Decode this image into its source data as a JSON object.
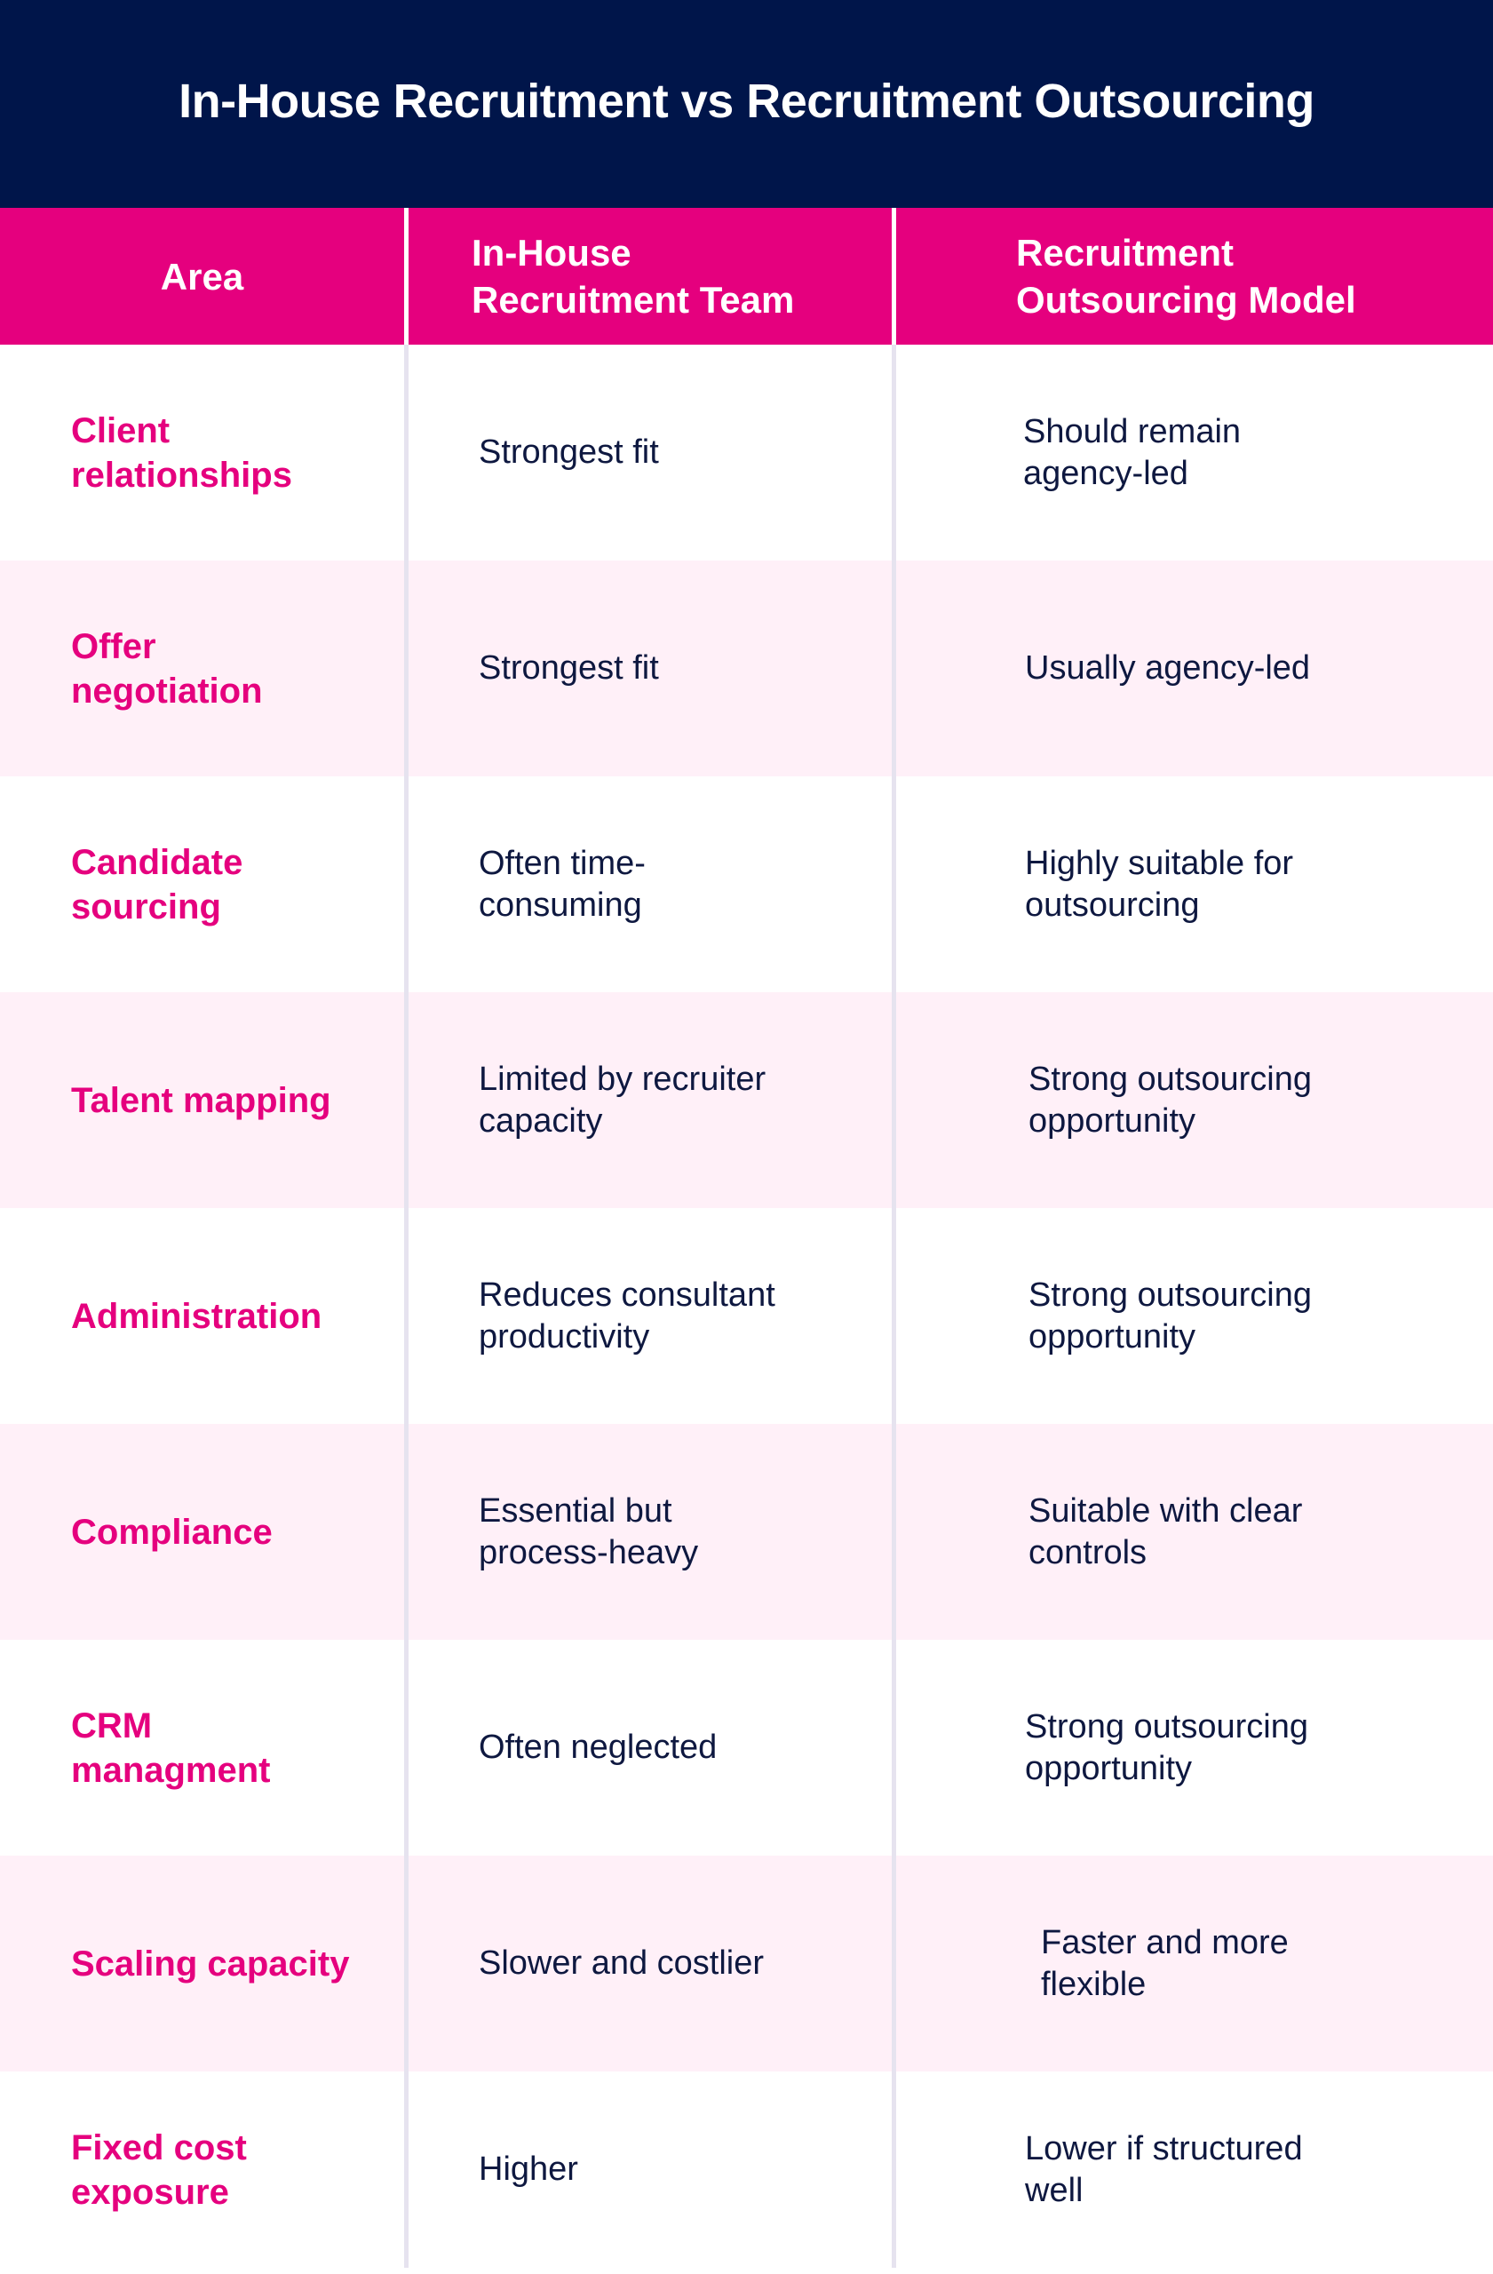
{
  "title": "In-House Recruitment vs Recruitment Outsourcing",
  "colors": {
    "title_bg": "#00154a",
    "header_bg": "#e5007e",
    "area_text": "#e5007e",
    "body_text": "#0e1840",
    "row_alt_bg": "#fff0f8"
  },
  "columns": {
    "area": "Area",
    "inhouse": "In-House Recruitment Team",
    "outsource": "Recruitment Outsourcing Model"
  },
  "rows": [
    {
      "area": "Client relationships",
      "inhouse": "Strongest fit",
      "outsource": "Should remain agency-led"
    },
    {
      "area": "Offer negotiation",
      "inhouse": "Strongest fit",
      "outsource": "Usually agency-led"
    },
    {
      "area": "Candidate sourcing",
      "inhouse": "Often time-consuming",
      "outsource": "Highly suitable for outsourcing"
    },
    {
      "area": "Talent mapping",
      "inhouse": "Limited by recruiter capacity",
      "outsource": "Strong outsourcing opportunity"
    },
    {
      "area": "Administration",
      "inhouse": "Reduces consultant productivity",
      "outsource": "Strong outsourcing opportunity"
    },
    {
      "area": "Compliance",
      "inhouse": "Essential but process-heavy",
      "outsource": "Suitable with clear controls"
    },
    {
      "area": "CRM managment",
      "inhouse": "Often neglected",
      "outsource": "Strong outsourcing opportunity"
    },
    {
      "area": "Scaling capacity",
      "inhouse": "Slower and costlier",
      "outsource": "Faster and more flexible"
    },
    {
      "area": "Fixed cost exposure",
      "inhouse": "Higher",
      "outsource": "Lower if structured well"
    }
  ]
}
